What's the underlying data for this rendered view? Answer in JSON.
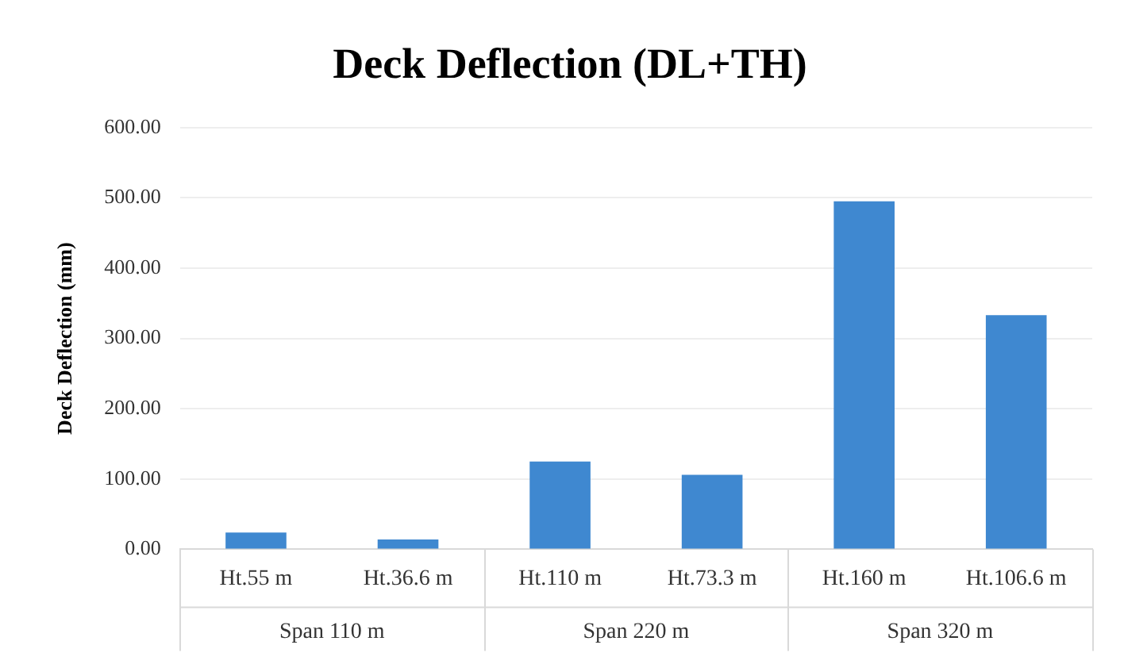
{
  "chart_data": {
    "type": "bar",
    "title": "Deck Deflection (DL+TH)",
    "ylabel": "Deck Deflection (mm)",
    "categories": [
      "Ht.55 m",
      "Ht.36.6 m",
      "Ht.110 m",
      "Ht.73.3 m",
      "Ht.160 m",
      "Ht.106.6 m"
    ],
    "values": [
      24,
      14,
      125,
      106,
      495,
      333
    ],
    "color": "#3f88d0",
    "ylim": [
      0,
      600
    ],
    "yticks": [
      {
        "value": 0,
        "label": "0.00"
      },
      {
        "value": 100,
        "label": "100.00"
      },
      {
        "value": 200,
        "label": "200.00"
      },
      {
        "value": 300,
        "label": "300.00"
      },
      {
        "value": 400,
        "label": "400.00"
      },
      {
        "value": 500,
        "label": "500.00"
      },
      {
        "value": 600,
        "label": "600.00"
      }
    ],
    "grid": "y",
    "annotations": [
      "Span 110 m",
      "Span 220 m",
      "Span 320 m"
    ]
  }
}
